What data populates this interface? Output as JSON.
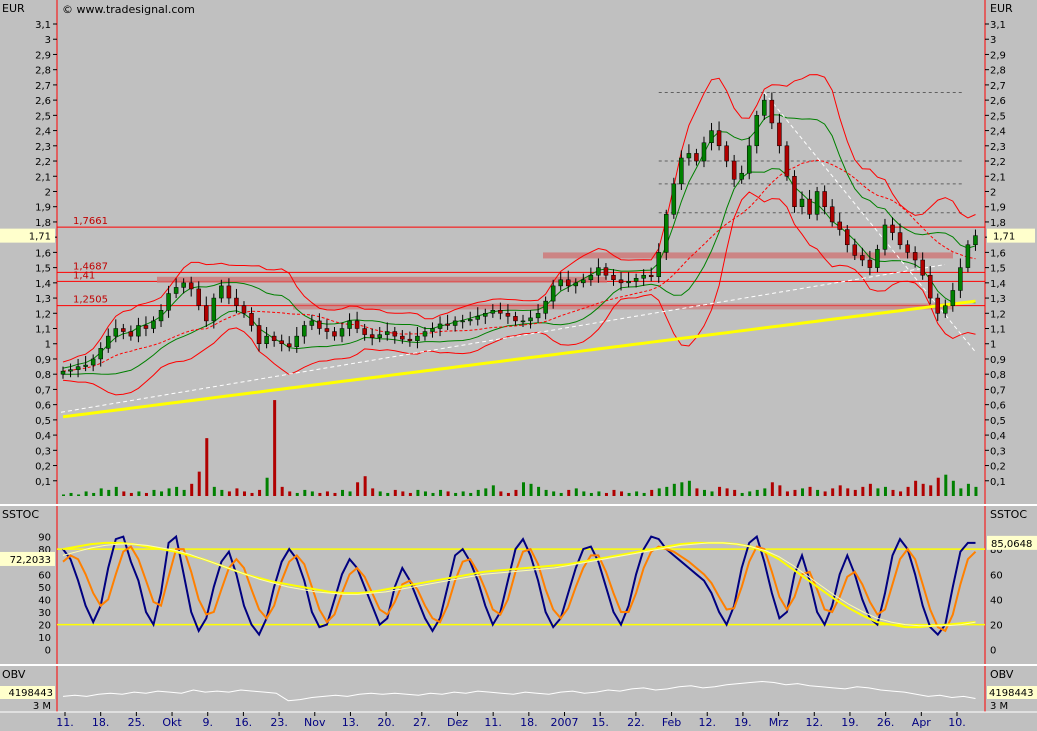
{
  "brand": "© www.tradesignal.com",
  "colors": {
    "background": "#c0c0c0",
    "price_up": "#008000",
    "price_down": "#b00000",
    "bollinger": "#ff0000",
    "envelope": "#008000",
    "ma_long": "#ffff00",
    "stoch_k": "#000080",
    "stoch_d": "#ff8000",
    "obv": "#ffffff",
    "support": "#ff0000",
    "divider": "#ff0000"
  },
  "chart_data": [
    {
      "panel": "price",
      "type": "candlestick",
      "unit": "EUR",
      "ylim": [
        0,
        3.15
      ],
      "yticks": [
        "0,1",
        "0,2",
        "0,3",
        "0,4",
        "0,5",
        "0,6",
        "0,7",
        "0,8",
        "0,9",
        "1",
        "1,1",
        "1,2",
        "1,3",
        "1,4",
        "1,5",
        "1,6",
        "1,7",
        "1,8",
        "1,9",
        "2",
        "2,1",
        "2,2",
        "2,3",
        "2,4",
        "2,5",
        "2,6",
        "2,7",
        "2,8",
        "2,9",
        "3",
        "3,1"
      ],
      "last_value": 1.71,
      "last_label": "1,71",
      "horizontal_levels": [
        {
          "value": 1.7661,
          "label": "1,7661"
        },
        {
          "value": 1.4687,
          "label": "1,4687"
        },
        {
          "value": 1.41,
          "label": "1,41"
        },
        {
          "value": 1.2505,
          "label": "1,2505"
        }
      ],
      "fib_levels": [
        2.65,
        2.2,
        2.05,
        1.86
      ],
      "x_labels": [
        "11.",
        "18.",
        "25.",
        "Okt",
        "9.",
        "16.",
        "23.",
        "Nov",
        "13.",
        "20.",
        "27.",
        "Dez",
        "11.",
        "18.",
        "2007",
        "15.",
        "22.",
        "Feb",
        "12.",
        "19.",
        "Mrz",
        "12.",
        "19.",
        "26.",
        "Apr",
        "10."
      ],
      "close": [
        0.82,
        0.83,
        0.85,
        0.86,
        0.9,
        0.97,
        1.05,
        1.1,
        1.08,
        1.05,
        1.12,
        1.1,
        1.15,
        1.22,
        1.33,
        1.37,
        1.4,
        1.36,
        1.25,
        1.15,
        1.3,
        1.38,
        1.3,
        1.25,
        1.2,
        1.12,
        1.0,
        1.05,
        1.02,
        1.0,
        0.98,
        1.05,
        1.12,
        1.15,
        1.1,
        1.08,
        1.05,
        1.1,
        1.15,
        1.1,
        1.06,
        1.04,
        1.06,
        1.08,
        1.05,
        1.03,
        1.02,
        1.05,
        1.08,
        1.1,
        1.13,
        1.12,
        1.15,
        1.15,
        1.16,
        1.18,
        1.2,
        1.22,
        1.2,
        1.18,
        1.15,
        1.15,
        1.17,
        1.2,
        1.28,
        1.38,
        1.42,
        1.38,
        1.4,
        1.42,
        1.45,
        1.5,
        1.45,
        1.42,
        1.4,
        1.41,
        1.43,
        1.45,
        1.44,
        1.6,
        1.85,
        2.05,
        2.22,
        2.25,
        2.2,
        2.32,
        2.4,
        2.3,
        2.2,
        2.08,
        2.12,
        2.3,
        2.5,
        2.6,
        2.45,
        2.3,
        2.1,
        1.9,
        1.95,
        1.85,
        2.0,
        1.9,
        1.8,
        1.75,
        1.65,
        1.58,
        1.55,
        1.5,
        1.62,
        1.78,
        1.73,
        1.65,
        1.6,
        1.55,
        1.45,
        1.3,
        1.2,
        1.25,
        1.35,
        1.5,
        1.65,
        1.71
      ],
      "volume": [
        0.01,
        0.02,
        0.01,
        0.03,
        0.02,
        0.05,
        0.04,
        0.06,
        0.03,
        0.02,
        0.03,
        0.02,
        0.04,
        0.03,
        0.05,
        0.06,
        0.04,
        0.08,
        0.16,
        0.38,
        0.06,
        0.04,
        0.03,
        0.05,
        0.03,
        0.02,
        0.04,
        0.12,
        0.63,
        0.06,
        0.03,
        0.02,
        0.04,
        0.03,
        0.02,
        0.03,
        0.02,
        0.04,
        0.03,
        0.09,
        0.13,
        0.05,
        0.03,
        0.02,
        0.04,
        0.03,
        0.02,
        0.04,
        0.03,
        0.02,
        0.04,
        0.03,
        0.02,
        0.03,
        0.02,
        0.04,
        0.05,
        0.07,
        0.03,
        0.02,
        0.04,
        0.09,
        0.08,
        0.06,
        0.04,
        0.03,
        0.02,
        0.04,
        0.05,
        0.03,
        0.02,
        0.03,
        0.02,
        0.04,
        0.03,
        0.02,
        0.03,
        0.02,
        0.04,
        0.05,
        0.06,
        0.08,
        0.09,
        0.1,
        0.05,
        0.04,
        0.03,
        0.06,
        0.05,
        0.04,
        0.02,
        0.03,
        0.04,
        0.05,
        0.09,
        0.07,
        0.03,
        0.04,
        0.05,
        0.06,
        0.04,
        0.03,
        0.05,
        0.07,
        0.05,
        0.04,
        0.06,
        0.08,
        0.05,
        0.06,
        0.04,
        0.03,
        0.06,
        0.1,
        0.08,
        0.07,
        0.12,
        0.14,
        0.1,
        0.05,
        0.08,
        0.06
      ]
    },
    {
      "panel": "oscillator",
      "type": "line",
      "title": "SSTOC",
      "ylim": [
        -5,
        100
      ],
      "yticks": [
        "0",
        "10",
        "20",
        "30",
        "40",
        "50",
        "60",
        "70",
        "80",
        "90"
      ],
      "right_ticks": [
        "0",
        "20",
        "40",
        "60",
        "80"
      ],
      "levels": [
        80,
        20
      ],
      "last_value_left": "72,2033",
      "last_value_right": "85,0648",
      "series": [
        {
          "values": [
            80,
            72,
            55,
            35,
            22,
            35,
            65,
            88,
            90,
            70,
            55,
            30,
            20,
            45,
            85,
            90,
            60,
            30,
            15,
            25,
            50,
            70,
            78,
            60,
            35,
            20,
            12,
            25,
            50,
            70,
            80,
            72,
            55,
            30,
            18,
            20,
            40,
            60,
            72,
            65,
            50,
            35,
            20,
            25,
            50,
            65,
            55,
            40,
            25,
            15,
            25,
            50,
            75,
            80,
            70,
            55,
            35,
            20,
            30,
            55,
            80,
            88,
            75,
            55,
            30,
            18,
            25,
            45,
            65,
            80,
            82,
            70,
            50,
            30,
            20,
            35,
            60,
            80,
            90,
            88,
            80,
            75,
            70,
            65,
            60,
            55,
            45,
            30,
            20,
            35,
            65,
            85,
            90,
            70,
            45,
            25,
            30,
            60,
            75,
            55,
            30,
            20,
            35,
            60,
            75,
            60,
            40,
            25,
            20,
            45,
            75,
            88,
            80,
            60,
            35,
            18,
            12,
            20,
            50,
            78,
            85,
            85
          ]
        },
        {
          "values": [
            70,
            75,
            72,
            60,
            45,
            35,
            40,
            60,
            78,
            82,
            72,
            55,
            38,
            35,
            58,
            80,
            80,
            62,
            40,
            28,
            30,
            48,
            65,
            72,
            65,
            48,
            32,
            25,
            35,
            55,
            70,
            75,
            68,
            50,
            32,
            22,
            28,
            45,
            60,
            65,
            58,
            45,
            32,
            28,
            38,
            52,
            55,
            48,
            35,
            25,
            22,
            35,
            55,
            70,
            72,
            62,
            48,
            32,
            28,
            40,
            62,
            78,
            80,
            68,
            48,
            32,
            25,
            33,
            50,
            65,
            75,
            75,
            62,
            45,
            30,
            30,
            45,
            65,
            78,
            82,
            80,
            78,
            74,
            70,
            65,
            60,
            53,
            42,
            32,
            33,
            50,
            70,
            82,
            80,
            62,
            42,
            32,
            42,
            60,
            62,
            48,
            32,
            30,
            42,
            58,
            62,
            52,
            38,
            28,
            32,
            52,
            72,
            80,
            72,
            52,
            32,
            18,
            15,
            28,
            52,
            72,
            78
          ]
        },
        {
          "values": [
            80,
            82,
            84,
            85,
            85,
            84,
            82,
            80,
            78,
            75,
            72,
            68,
            64,
            60,
            57,
            54,
            52,
            50,
            48,
            46,
            45,
            45,
            46,
            48,
            50,
            52,
            54,
            56,
            58,
            60,
            62,
            63,
            64,
            65,
            66,
            67,
            68,
            70,
            72,
            74,
            76,
            78,
            80,
            82,
            84,
            85,
            85,
            85,
            84,
            82,
            78,
            72,
            64,
            56,
            48,
            40,
            33,
            27,
            22,
            20,
            18,
            18,
            19,
            20,
            21,
            22
          ]
        },
        {
          "values": [
            75,
            78,
            81,
            83,
            84,
            84,
            83,
            81,
            79,
            76,
            72,
            68,
            64,
            60,
            56,
            53,
            50,
            48,
            46,
            45,
            44,
            44,
            45,
            46,
            48,
            50,
            52,
            54,
            56,
            58,
            60,
            61,
            62,
            63,
            64,
            65,
            67,
            69,
            71,
            73,
            75,
            77,
            79,
            81,
            83,
            84,
            85,
            85,
            84,
            82,
            79,
            74,
            67,
            59,
            51,
            43,
            36,
            30,
            25,
            22,
            20,
            19,
            19,
            19,
            20,
            22
          ]
        }
      ]
    },
    {
      "panel": "volume_indicator",
      "type": "line",
      "title": "OBV",
      "last_value": "4198443",
      "axis_label": "3 M",
      "series": [
        {
          "values": [
            44,
            45,
            44,
            46,
            47,
            46,
            48,
            47,
            49,
            48,
            47,
            50,
            48,
            49,
            48,
            50,
            49,
            48,
            47,
            40,
            41,
            43,
            44,
            45,
            44,
            46,
            47,
            46,
            47,
            46,
            45,
            47,
            46,
            48,
            47,
            49,
            48,
            47,
            46,
            48,
            47,
            46,
            48,
            49,
            47,
            48,
            50,
            49,
            51,
            52,
            50,
            51,
            53,
            54,
            52,
            53,
            55,
            56,
            57,
            58,
            57,
            55,
            56,
            54,
            53,
            52,
            51,
            53,
            52,
            50,
            49,
            48,
            46,
            44,
            45,
            43,
            44,
            42
          ]
        }
      ]
    }
  ]
}
